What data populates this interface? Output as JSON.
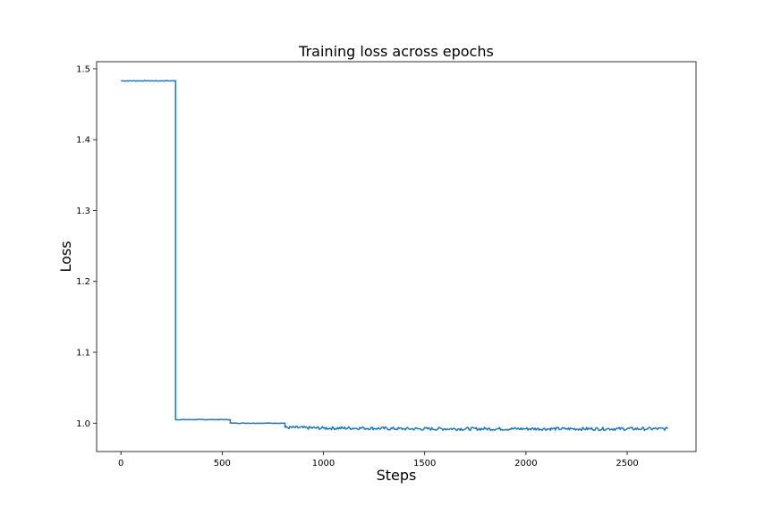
{
  "chart_data": {
    "type": "line",
    "title": "Training loss across epochs",
    "xlabel": "Steps",
    "ylabel": "Loss",
    "xlim": [
      -120,
      2840
    ],
    "ylim": [
      0.96,
      1.51
    ],
    "x_ticks": [
      0,
      500,
      1000,
      1500,
      2000,
      2500
    ],
    "x_tick_labels": [
      "0",
      "500",
      "1000",
      "1500",
      "2000",
      "2500"
    ],
    "y_ticks": [
      1.0,
      1.1,
      1.2,
      1.3,
      1.4,
      1.5
    ],
    "y_tick_labels": [
      "1.0",
      "1.1",
      "1.2",
      "1.3",
      "1.4",
      "1.5"
    ],
    "grid": false,
    "series": [
      {
        "color": "#1f77b4",
        "x": [
          0,
          270,
          270,
          540,
          540,
          810,
          810,
          1000,
          1200,
          1400,
          1600,
          1800,
          2000,
          2200,
          2400,
          2600,
          2700
        ],
        "y": [
          1.483,
          1.483,
          1.005,
          1.005,
          1.0,
          1.0,
          0.994,
          0.993,
          0.993,
          0.992,
          0.992,
          0.992,
          0.992,
          0.992,
          0.992,
          0.992,
          0.992
        ]
      }
    ]
  }
}
